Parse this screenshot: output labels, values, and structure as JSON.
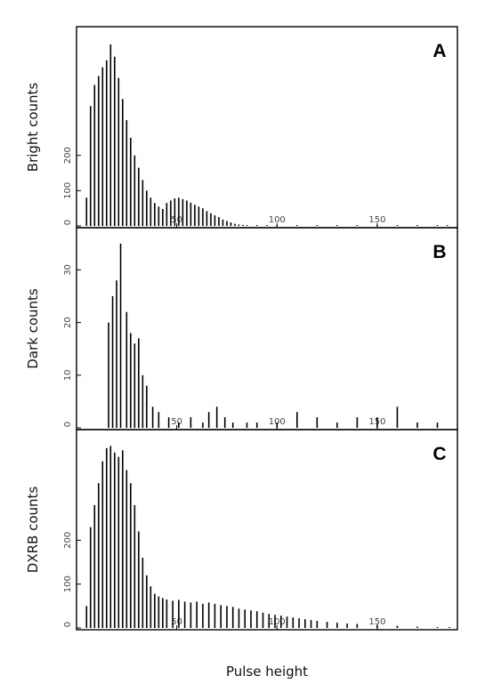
{
  "chart_data": [
    {
      "type": "bar",
      "panel_label": "A",
      "ylabel": "Bright counts",
      "xlabel": "",
      "xlim": [
        0,
        190
      ],
      "ylim": [
        0,
        550
      ],
      "xticks": [
        50,
        100,
        150
      ],
      "yticks": [
        0,
        100,
        200
      ],
      "x": [
        5,
        7,
        9,
        11,
        13,
        15,
        17,
        19,
        21,
        23,
        25,
        27,
        29,
        31,
        33,
        35,
        37,
        39,
        41,
        43,
        45,
        47,
        49,
        51,
        53,
        55,
        57,
        59,
        61,
        63,
        65,
        67,
        69,
        71,
        73,
        75,
        77,
        79,
        81,
        83,
        85,
        90,
        95,
        100,
        110,
        120,
        130,
        140,
        150,
        160,
        170,
        180,
        185
      ],
      "values": [
        80,
        340,
        400,
        425,
        450,
        470,
        515,
        480,
        420,
        360,
        300,
        250,
        200,
        165,
        130,
        100,
        80,
        65,
        55,
        48,
        65,
        72,
        78,
        80,
        76,
        72,
        66,
        60,
        55,
        50,
        42,
        36,
        30,
        25,
        18,
        14,
        10,
        6,
        4,
        3,
        2,
        1,
        1,
        1,
        1,
        1,
        1,
        1,
        1,
        1,
        1,
        1,
        1
      ]
    },
    {
      "type": "bar",
      "panel_label": "B",
      "ylabel": "Dark counts",
      "xlabel": "",
      "xlim": [
        0,
        190
      ],
      "ylim": [
        0,
        37
      ],
      "xticks": [
        50,
        100,
        150
      ],
      "yticks": [
        0,
        10,
        20,
        30
      ],
      "x": [
        16,
        18,
        20,
        22,
        25,
        27,
        29,
        31,
        33,
        35,
        38,
        41,
        46,
        51,
        57,
        63,
        66,
        70,
        74,
        78,
        85,
        90,
        100,
        110,
        120,
        130,
        140,
        150,
        160,
        170,
        180
      ],
      "values": [
        20,
        25,
        28,
        35,
        22,
        18,
        16,
        17,
        10,
        8,
        4,
        3,
        2,
        1,
        2,
        1,
        3,
        4,
        2,
        1,
        1,
        1,
        1,
        3,
        2,
        1,
        2,
        2,
        4,
        1,
        1
      ]
    },
    {
      "type": "bar",
      "panel_label": "C",
      "ylabel": "DXRB counts",
      "xlabel": "Pulse height",
      "xlim": [
        0,
        190
      ],
      "ylim": [
        0,
        440
      ],
      "xticks": [
        50,
        100,
        150
      ],
      "yticks": [
        0,
        100,
        200
      ],
      "x": [
        5,
        7,
        9,
        11,
        13,
        15,
        17,
        19,
        21,
        23,
        25,
        27,
        29,
        31,
        33,
        35,
        37,
        39,
        41,
        43,
        45,
        48,
        51,
        54,
        57,
        60,
        63,
        66,
        69,
        72,
        75,
        78,
        81,
        84,
        87,
        90,
        93,
        96,
        99,
        102,
        105,
        108,
        111,
        114,
        117,
        120,
        125,
        130,
        135,
        140,
        150,
        160,
        170,
        180,
        186
      ],
      "values": [
        50,
        230,
        280,
        330,
        380,
        410,
        415,
        400,
        390,
        405,
        360,
        330,
        280,
        220,
        160,
        120,
        95,
        78,
        72,
        68,
        65,
        62,
        64,
        60,
        58,
        60,
        55,
        58,
        55,
        52,
        50,
        48,
        44,
        42,
        40,
        38,
        35,
        32,
        30,
        28,
        26,
        24,
        22,
        20,
        18,
        16,
        14,
        12,
        10,
        9,
        7,
        5,
        3,
        2,
        2
      ]
    }
  ]
}
